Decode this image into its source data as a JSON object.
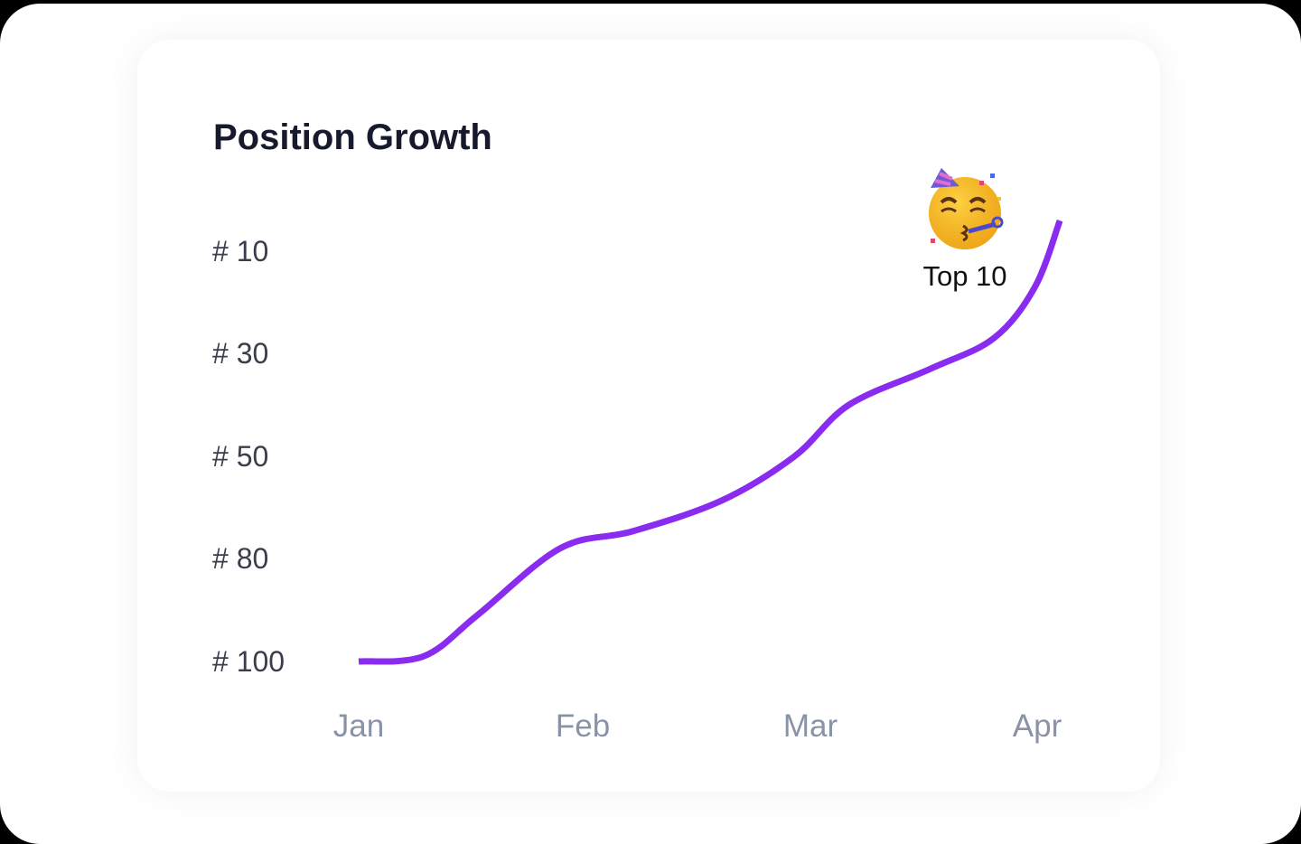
{
  "chart_data": {
    "type": "line",
    "title": "Position Growth",
    "xlabel": "",
    "ylabel": "",
    "x_tick_labels": [
      "Jan",
      "Feb",
      "Mar",
      "Apr"
    ],
    "y_tick_labels": [
      "# 10",
      "# 30",
      "# 50",
      "# 80",
      "# 100"
    ],
    "y_tick_values": [
      10,
      30,
      50,
      80,
      100
    ],
    "y_inverted": true,
    "grid": false,
    "legend": "none",
    "series": [
      {
        "color": "#8a2cf0",
        "points": [
          {
            "x": 0,
            "y": 100
          },
          {
            "x": 0.29,
            "y": 99
          },
          {
            "x": 0.53,
            "y": 91
          },
          {
            "x": 0.9,
            "y": 77
          },
          {
            "x": 1.22,
            "y": 72
          },
          {
            "x": 1.61,
            "y": 63
          },
          {
            "x": 1.93,
            "y": 50
          },
          {
            "x": 2.17,
            "y": 40
          },
          {
            "x": 2.53,
            "y": 33
          },
          {
            "x": 2.81,
            "y": 27
          },
          {
            "x": 2.99,
            "y": 17
          },
          {
            "x": 3.1,
            "y": 4
          }
        ]
      }
    ],
    "annotation": {
      "text": "Top 10",
      "icon": "partying-face-emoji-icon"
    }
  }
}
